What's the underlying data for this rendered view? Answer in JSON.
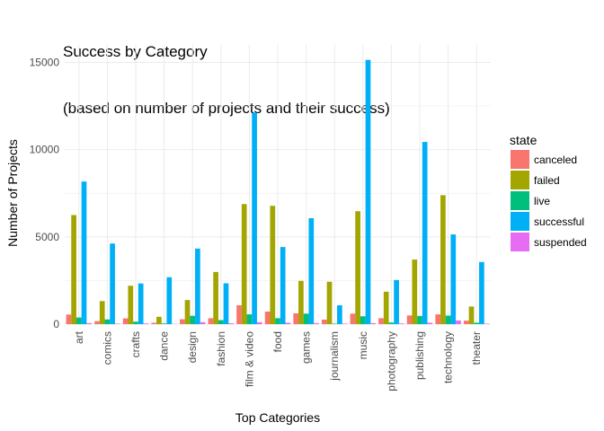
{
  "chart_data": {
    "type": "bar",
    "title": "Success by Category",
    "subtitle": "(based on number of projects and their success)",
    "xlabel": "Top Categories",
    "ylabel": "Number of Projects",
    "ylim": [
      0,
      16000
    ],
    "yticks": [
      0,
      5000,
      10000,
      15000
    ],
    "grid": true,
    "legend_position": "right",
    "legend_title": "state",
    "categories": [
      "art",
      "comics",
      "crafts",
      "dance",
      "design",
      "fashion",
      "film & video",
      "food",
      "games",
      "journalism",
      "music",
      "photography",
      "publishing",
      "technology",
      "theater"
    ],
    "series": [
      {
        "name": "canceled",
        "color": "#F8766D",
        "values": [
          550,
          170,
          330,
          80,
          280,
          340,
          1080,
          720,
          620,
          260,
          600,
          340,
          500,
          560,
          200
        ]
      },
      {
        "name": "failed",
        "color": "#A3A500",
        "values": [
          6250,
          1320,
          2200,
          420,
          1380,
          2990,
          6880,
          6780,
          2480,
          2430,
          6470,
          1860,
          3700,
          7390,
          1010
        ]
      },
      {
        "name": "live",
        "color": "#00BF7D",
        "values": [
          380,
          270,
          140,
          40,
          480,
          230,
          560,
          340,
          600,
          30,
          450,
          90,
          470,
          490,
          80
        ]
      },
      {
        "name": "successful",
        "color": "#00B0F6",
        "values": [
          8170,
          4620,
          2330,
          2690,
          4330,
          2340,
          12110,
          4420,
          6070,
          1080,
          15140,
          2530,
          10440,
          5140,
          3560
        ]
      },
      {
        "name": "suspended",
        "color": "#E76BF3",
        "values": [
          60,
          30,
          40,
          10,
          110,
          50,
          110,
          80,
          60,
          30,
          60,
          40,
          80,
          210,
          30
        ]
      }
    ]
  }
}
